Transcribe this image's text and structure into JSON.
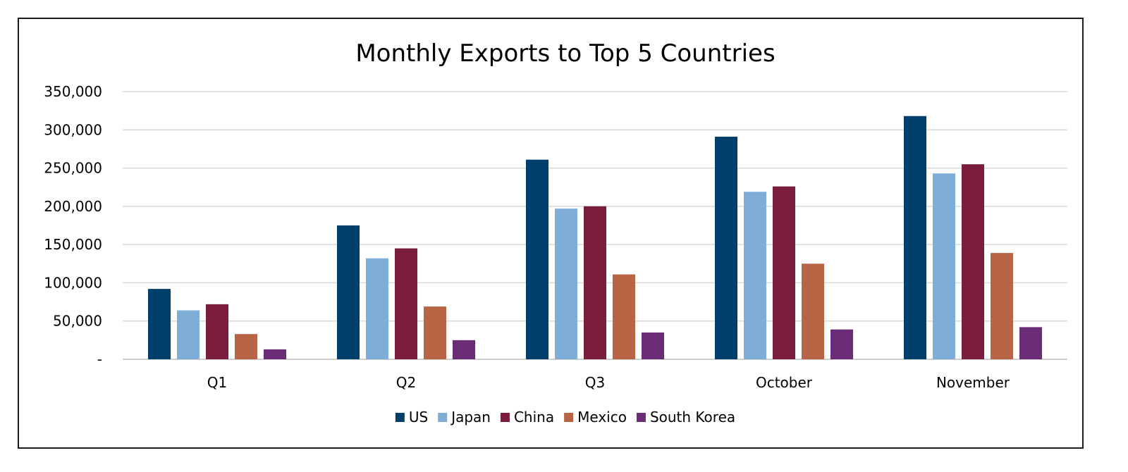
{
  "chart_data": {
    "type": "bar",
    "title": "Monthly Exports to Top 5 Countries",
    "xlabel": "",
    "ylabel": "",
    "categories": [
      "Q1",
      "Q2",
      "Q3",
      "October",
      "November"
    ],
    "series": [
      {
        "name": "US",
        "color": "#003f6b",
        "values": [
          92000,
          175000,
          261000,
          291000,
          318000
        ]
      },
      {
        "name": "Japan",
        "color": "#7eadd8",
        "values": [
          64000,
          132000,
          197000,
          219000,
          243000
        ]
      },
      {
        "name": "China",
        "color": "#7a1c3c",
        "values": [
          72000,
          145000,
          200000,
          226000,
          255000
        ]
      },
      {
        "name": "Mexico",
        "color": "#b86546",
        "values": [
          33000,
          69000,
          111000,
          125000,
          139000
        ]
      },
      {
        "name": "South Korea",
        "color": "#6b2d78",
        "values": [
          13000,
          25000,
          35000,
          39000,
          42000
        ]
      }
    ],
    "ylim": [
      0,
      350000
    ],
    "yticks": [
      {
        "value": 0,
        "label": "-"
      },
      {
        "value": 50000,
        "label": "50,000"
      },
      {
        "value": 100000,
        "label": "100,000"
      },
      {
        "value": 150000,
        "label": "150,000"
      },
      {
        "value": 200000,
        "label": "200,000"
      },
      {
        "value": 250000,
        "label": "250,000"
      },
      {
        "value": 300000,
        "label": "300,000"
      },
      {
        "value": 350000,
        "label": "350,000"
      }
    ],
    "grid": true,
    "legend": "bottom"
  }
}
